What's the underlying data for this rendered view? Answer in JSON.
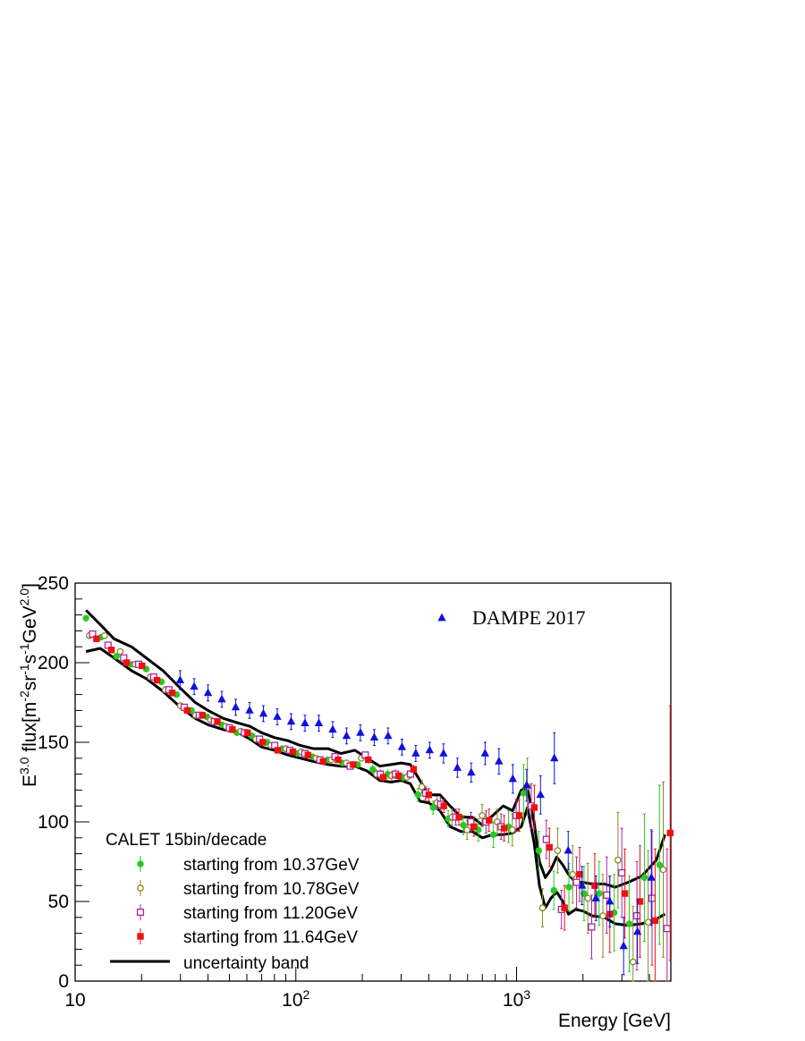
{
  "chart_data": {
    "type": "scatter",
    "xlabel": "Energy [GeV]",
    "ylabel": "E^{3.0} flux[m^{-2}sr^{-1}s^{-1}GeV^{2.0}]",
    "xscale": "log",
    "xlim": [
      10,
      5000
    ],
    "ylim": [
      0,
      250
    ],
    "grid": false,
    "x_tick_labels": [
      {
        "base": "10",
        "exp": ""
      },
      {
        "base": "10",
        "exp": "2"
      },
      {
        "base": "10",
        "exp": "3"
      }
    ],
    "y_tick_labels": [
      "0",
      "50",
      "100",
      "150",
      "200",
      "250"
    ],
    "legend_dampe": {
      "label": "DAMPE 2017",
      "placement": "top-right"
    },
    "legend_calet": {
      "title": "CALET 15bin/decade",
      "placement": "bottom-left"
    },
    "series": [
      {
        "name": "starting from 10.37GeV",
        "color": "#22cc22",
        "marker": "filled-circle",
        "x": [
          11.2,
          13.1,
          15.4,
          18.0,
          21.0,
          24.6,
          28.8,
          33.7,
          39.5,
          46.2,
          54.1,
          63.3,
          74.1,
          86.7,
          101.5,
          118.8,
          139.1,
          162.8,
          190.6,
          223.0,
          261.0,
          305.5,
          357.6,
          418.6,
          490.0,
          573.5,
          671.3,
          785.8,
          919.8,
          1076.6,
          1260.2,
          1475.1,
          1726.7,
          2021.1,
          2365.8,
          2769.2,
          3241.4,
          3794.1,
          4441.0
        ],
        "y": [
          228,
          216,
          204,
          199,
          196,
          188,
          180,
          170,
          166,
          161,
          156,
          154,
          150,
          146,
          143,
          141,
          139,
          137,
          136,
          133,
          130,
          128,
          117,
          109,
          102,
          98,
          95,
          92,
          97,
          118,
          82,
          57,
          59,
          55,
          55,
          43,
          36,
          65,
          73
        ],
        "err": [
          2,
          2,
          2,
          2,
          2,
          2,
          2,
          2,
          2,
          2,
          2,
          2,
          2,
          2,
          2,
          2,
          2,
          2,
          2,
          3,
          3,
          3,
          4,
          4,
          5,
          6,
          7,
          8,
          10,
          18,
          12,
          12,
          15,
          17,
          20,
          24,
          30,
          40,
          50
        ]
      },
      {
        "name": "starting from 10.78GeV",
        "color": "#888822",
        "marker": "open-circle",
        "x": [
          11.6,
          13.6,
          16.0,
          18.7,
          21.9,
          25.6,
          30.0,
          35.1,
          41.1,
          48.1,
          56.3,
          65.9,
          77.1,
          90.2,
          105.6,
          123.6,
          144.7,
          169.3,
          198.2,
          232.0,
          271.6,
          317.9,
          372.1,
          435.5,
          509.8,
          596.7,
          698.4,
          817.5,
          956.9,
          1120.0,
          1311.0,
          1534.4,
          1796.0,
          2102.3,
          2460.7,
          2880.3,
          3371.4,
          3946.3,
          4619.2
        ],
        "y": [
          217,
          217,
          207,
          199,
          191,
          183,
          173,
          167,
          164,
          160,
          157,
          152,
          148,
          146,
          144,
          140,
          139,
          137,
          140,
          130,
          129,
          128,
          122,
          112,
          103,
          95,
          104,
          100,
          95,
          122,
          46,
          82,
          67,
          52,
          41,
          76,
          12,
          37,
          70
        ],
        "err": [
          2,
          2,
          2,
          2,
          2,
          2,
          2,
          2,
          2,
          2,
          2,
          2,
          2,
          2,
          2,
          2,
          2,
          2,
          2,
          3,
          3,
          3,
          4,
          4,
          5,
          6,
          7,
          8,
          10,
          18,
          12,
          14,
          18,
          22,
          26,
          30,
          35,
          45,
          55
        ]
      },
      {
        "name": "starting from 11.20GeV",
        "color": "#aa22aa",
        "marker": "open-square",
        "x": [
          12.0,
          14.1,
          16.6,
          19.4,
          22.7,
          26.6,
          31.2,
          36.5,
          42.7,
          50.0,
          58.5,
          68.5,
          80.2,
          93.8,
          109.8,
          128.6,
          150.5,
          176.2,
          206.2,
          241.4,
          282.6,
          330.8,
          387.2,
          453.2,
          530.5,
          621.0,
          726.9,
          850.9,
          996.0,
          1165.8,
          1364.6,
          1597.3,
          1869.7,
          2188.6,
          2561.7,
          2998.5,
          3509.8,
          4108.4,
          4809.0
        ],
        "y": [
          218,
          211,
          203,
          199,
          191,
          183,
          172,
          167,
          163,
          159,
          156,
          152,
          148,
          145,
          143,
          139,
          141,
          135,
          142,
          130,
          130,
          130,
          118,
          111,
          103,
          100,
          100,
          97,
          104,
          110,
          89,
          45,
          62,
          34,
          54,
          68,
          41,
          52,
          33
        ],
        "err": [
          2,
          2,
          2,
          2,
          2,
          2,
          2,
          2,
          2,
          2,
          2,
          2,
          2,
          2,
          2,
          2,
          2,
          2,
          2,
          3,
          3,
          3,
          4,
          4,
          5,
          6,
          7,
          8,
          10,
          14,
          12,
          12,
          16,
          20,
          24,
          28,
          34,
          42,
          50
        ]
      },
      {
        "name": "starting from 11.64GeV",
        "color": "#ee1111",
        "marker": "filled-square",
        "x": [
          12.5,
          14.6,
          17.1,
          20.1,
          23.5,
          27.5,
          32.2,
          37.7,
          44.1,
          51.6,
          60.4,
          70.7,
          82.8,
          96.9,
          113.4,
          132.8,
          155.4,
          181.9,
          212.9,
          249.2,
          291.8,
          341.6,
          399.9,
          468.1,
          547.9,
          641.3,
          750.6,
          878.7,
          1028.5,
          1203.9,
          1409.2,
          1649.5,
          1930.8,
          2260.0,
          2645.4,
          3096.5,
          3624.6,
          4242.7,
          4966.2
        ],
        "y": [
          215,
          208,
          200,
          198,
          189,
          181,
          170,
          167,
          163,
          158,
          156,
          150,
          145,
          144,
          142,
          138,
          139,
          136,
          139,
          128,
          129,
          133,
          117,
          110,
          103,
          97,
          101,
          96,
          104,
          109,
          84,
          46,
          67,
          60,
          42,
          55,
          50,
          38,
          93
        ],
        "err": [
          2,
          2,
          2,
          2,
          2,
          2,
          2,
          2,
          2,
          2,
          2,
          2,
          2,
          2,
          2,
          2,
          2,
          2,
          2,
          3,
          3,
          3,
          4,
          4,
          5,
          6,
          7,
          8,
          10,
          14,
          12,
          14,
          17,
          20,
          24,
          28,
          35,
          45,
          80
        ]
      },
      {
        "name": "DAMPE 2017",
        "color": "#1111dd",
        "marker": "filled-triangle",
        "x": [
          29.9,
          34.6,
          40.0,
          46.2,
          53.4,
          61.7,
          71.3,
          82.4,
          95.2,
          110.0,
          127.1,
          146.9,
          169.7,
          196.1,
          226.6,
          261.8,
          302.5,
          349.5,
          403.9,
          466.7,
          539.3,
          623.2,
          720.1,
          832.1,
          961.5,
          1111.0,
          1283.8,
          1483.4,
          1714.0,
          1980.5,
          2288.5,
          2644.4,
          3055.6,
          3530.8,
          4079.8
        ],
        "y": [
          189,
          185,
          181,
          177,
          172,
          170,
          168,
          166,
          163,
          162,
          162,
          158,
          154,
          156,
          153,
          154,
          147,
          143,
          145,
          143,
          134,
          131,
          143,
          138,
          127,
          123,
          117,
          140,
          82,
          60,
          52,
          50,
          22,
          31,
          65
        ],
        "err": [
          6,
          5,
          5,
          5,
          5,
          5,
          5,
          5,
          5,
          5,
          5,
          5,
          5,
          5,
          5,
          5,
          5,
          5,
          5,
          6,
          6,
          6,
          7,
          8,
          9,
          10,
          12,
          16,
          12,
          12,
          14,
          16,
          18,
          20,
          30
        ]
      }
    ],
    "band": {
      "name": "uncertainty band",
      "color": "#000000",
      "upper": {
        "x": [
          11.2,
          13,
          15,
          18,
          21,
          25,
          30,
          35,
          40,
          47,
          55,
          62,
          70,
          80,
          92,
          105,
          120,
          140,
          160,
          185,
          210,
          240,
          270,
          300,
          330,
          365,
          400,
          450,
          500,
          560,
          630,
          700,
          780,
          870,
          960,
          1050,
          1120,
          1200,
          1270,
          1350,
          1430,
          1520,
          1620,
          1720,
          1850,
          2000,
          2200,
          2500,
          2800,
          3200,
          3700,
          4300,
          4700
        ],
        "y": [
          233,
          224,
          215,
          210,
          203,
          195,
          184,
          175,
          170,
          165,
          162,
          160,
          156,
          153,
          151,
          148,
          146,
          146,
          143,
          145,
          140,
          135,
          136,
          137,
          136,
          126,
          117,
          117,
          110,
          103,
          103,
          98,
          104,
          110,
          107,
          120,
          121,
          100,
          75,
          65,
          70,
          78,
          73,
          67,
          62,
          62,
          61,
          61,
          59,
          62,
          66,
          76,
          92
        ]
      },
      "lower": {
        "x": [
          11.2,
          13,
          15,
          18,
          21,
          25,
          30,
          35,
          40,
          47,
          55,
          62,
          70,
          80,
          92,
          105,
          120,
          140,
          160,
          185,
          210,
          240,
          270,
          300,
          330,
          365,
          400,
          450,
          500,
          560,
          630,
          700,
          780,
          870,
          960,
          1050,
          1120,
          1200,
          1270,
          1350,
          1430,
          1520,
          1620,
          1720,
          1850,
          2000,
          2200,
          2500,
          2800,
          3200,
          3700,
          4300,
          4700
        ],
        "y": [
          207,
          209,
          203,
          195,
          190,
          182,
          172,
          165,
          161,
          158,
          156,
          152,
          147,
          145,
          142,
          140,
          138,
          136,
          135,
          135,
          132,
          126,
          125,
          126,
          124,
          113,
          112,
          107,
          97,
          94,
          94,
          90,
          92,
          92,
          93,
          97,
          109,
          87,
          60,
          46,
          52,
          56,
          50,
          42,
          45,
          44,
          41,
          40,
          36,
          35,
          36,
          39,
          42
        ]
      }
    }
  }
}
